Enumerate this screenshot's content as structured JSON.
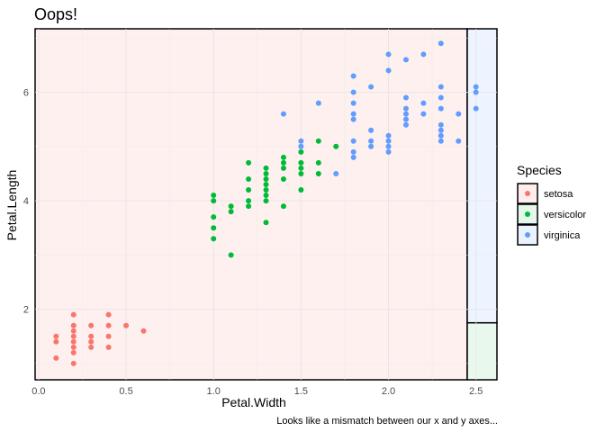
{
  "chart_data": {
    "type": "scatter",
    "title": "Oops!",
    "xlabel": "Petal.Width",
    "ylabel": "Petal.Length",
    "caption": "Looks like a mismatch between our x and y axes...",
    "xlim": [
      -0.02,
      2.62
    ],
    "ylim": [
      0.7,
      7.17
    ],
    "x_ticks": [
      0.0,
      0.5,
      1.0,
      1.5,
      2.0,
      2.5
    ],
    "x_tick_labels": [
      "0.0",
      "0.5",
      "1.0",
      "1.5",
      "2.0",
      "2.5"
    ],
    "y_ticks": [
      2,
      4,
      6
    ],
    "y_tick_labels": [
      "2",
      "4",
      "6"
    ],
    "grid": true,
    "legend": {
      "title": "Species",
      "position": "right",
      "entries": [
        "setosa",
        "versicolor",
        "virginica"
      ]
    },
    "colors": {
      "setosa": "#F8766D",
      "versicolor": "#00BA38",
      "virginica": "#619CFF"
    },
    "fill_colors": {
      "setosa": "#FDEDEC",
      "versicolor": "#E5F7EA",
      "virginica": "#EBF2FF"
    },
    "rects": [
      {
        "species": "setosa",
        "xmin": -0.02,
        "xmax": 2.45,
        "ymin": 0.7,
        "ymax": 7.17
      },
      {
        "species": "virginica",
        "xmin": 2.45,
        "xmax": 2.62,
        "ymin": 1.75,
        "ymax": 7.17
      },
      {
        "species": "versicolor",
        "xmin": 2.45,
        "xmax": 2.62,
        "ymin": 0.7,
        "ymax": 1.75
      }
    ],
    "series": [
      {
        "name": "setosa",
        "points": [
          [
            0.1,
            1.1
          ],
          [
            0.1,
            1.4
          ],
          [
            0.1,
            1.5
          ],
          [
            0.2,
            1.0
          ],
          [
            0.2,
            1.2
          ],
          [
            0.2,
            1.3
          ],
          [
            0.2,
            1.4
          ],
          [
            0.2,
            1.5
          ],
          [
            0.2,
            1.6
          ],
          [
            0.2,
            1.7
          ],
          [
            0.2,
            1.9
          ],
          [
            0.3,
            1.3
          ],
          [
            0.3,
            1.4
          ],
          [
            0.3,
            1.5
          ],
          [
            0.3,
            1.7
          ],
          [
            0.4,
            1.3
          ],
          [
            0.4,
            1.5
          ],
          [
            0.4,
            1.7
          ],
          [
            0.4,
            1.9
          ],
          [
            0.5,
            1.7
          ],
          [
            0.6,
            1.6
          ]
        ]
      },
      {
        "name": "versicolor",
        "points": [
          [
            1.0,
            3.3
          ],
          [
            1.0,
            3.5
          ],
          [
            1.0,
            3.7
          ],
          [
            1.0,
            4.0
          ],
          [
            1.0,
            4.1
          ],
          [
            1.1,
            3.0
          ],
          [
            1.1,
            3.8
          ],
          [
            1.1,
            3.9
          ],
          [
            1.2,
            3.9
          ],
          [
            1.2,
            4.0
          ],
          [
            1.2,
            4.2
          ],
          [
            1.2,
            4.4
          ],
          [
            1.2,
            4.7
          ],
          [
            1.3,
            3.6
          ],
          [
            1.3,
            4.0
          ],
          [
            1.3,
            4.1
          ],
          [
            1.3,
            4.2
          ],
          [
            1.3,
            4.3
          ],
          [
            1.3,
            4.4
          ],
          [
            1.3,
            4.5
          ],
          [
            1.3,
            4.6
          ],
          [
            1.4,
            3.9
          ],
          [
            1.4,
            4.4
          ],
          [
            1.4,
            4.6
          ],
          [
            1.4,
            4.7
          ],
          [
            1.4,
            4.8
          ],
          [
            1.5,
            4.2
          ],
          [
            1.5,
            4.5
          ],
          [
            1.5,
            4.6
          ],
          [
            1.5,
            4.7
          ],
          [
            1.5,
            4.9
          ],
          [
            1.6,
            4.5
          ],
          [
            1.6,
            4.7
          ],
          [
            1.6,
            5.1
          ],
          [
            1.7,
            5.0
          ]
        ]
      },
      {
        "name": "virginica",
        "points": [
          [
            1.4,
            5.6
          ],
          [
            1.5,
            5.0
          ],
          [
            1.5,
            5.1
          ],
          [
            1.6,
            5.8
          ],
          [
            1.7,
            4.5
          ],
          [
            1.8,
            4.8
          ],
          [
            1.8,
            4.9
          ],
          [
            1.8,
            5.1
          ],
          [
            1.8,
            5.5
          ],
          [
            1.8,
            5.6
          ],
          [
            1.8,
            5.8
          ],
          [
            1.8,
            6.0
          ],
          [
            1.8,
            6.3
          ],
          [
            1.9,
            5.0
          ],
          [
            1.9,
            5.1
          ],
          [
            1.9,
            5.3
          ],
          [
            1.9,
            6.1
          ],
          [
            2.0,
            4.9
          ],
          [
            2.0,
            5.0
          ],
          [
            2.0,
            5.1
          ],
          [
            2.0,
            5.2
          ],
          [
            2.0,
            6.4
          ],
          [
            2.0,
            6.7
          ],
          [
            2.1,
            5.4
          ],
          [
            2.1,
            5.5
          ],
          [
            2.1,
            5.6
          ],
          [
            2.1,
            5.7
          ],
          [
            2.1,
            5.9
          ],
          [
            2.1,
            6.6
          ],
          [
            2.2,
            5.6
          ],
          [
            2.2,
            5.8
          ],
          [
            2.2,
            6.7
          ],
          [
            2.3,
            5.1
          ],
          [
            2.3,
            5.2
          ],
          [
            2.3,
            5.3
          ],
          [
            2.3,
            5.4
          ],
          [
            2.3,
            5.7
          ],
          [
            2.3,
            5.9
          ],
          [
            2.3,
            6.1
          ],
          [
            2.3,
            6.9
          ],
          [
            2.4,
            5.1
          ],
          [
            2.4,
            5.6
          ],
          [
            2.5,
            5.7
          ],
          [
            2.5,
            6.0
          ],
          [
            2.5,
            6.1
          ]
        ]
      }
    ]
  }
}
